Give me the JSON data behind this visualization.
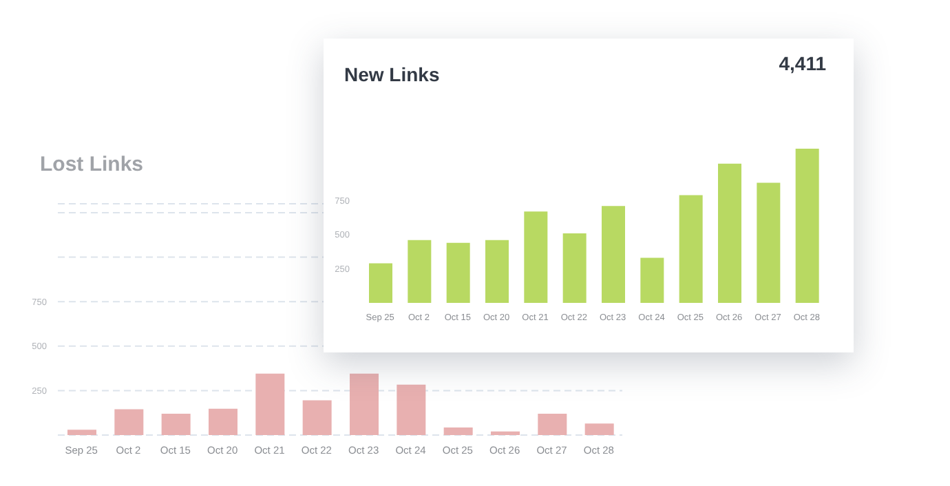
{
  "chart_data": [
    {
      "type": "bar",
      "title": "New Links",
      "annotations": [
        "4,411"
      ],
      "categories": [
        "Sep 25",
        "Oct 2",
        "Oct 15",
        "Oct 20",
        "Oct 21",
        "Oct 22",
        "Oct 23",
        "Oct 24",
        "Oct 25",
        "Oct 26",
        "Oct 27",
        "Oct 28"
      ],
      "values": [
        290,
        460,
        440,
        460,
        670,
        510,
        710,
        330,
        790,
        1020,
        880,
        1130
      ],
      "color": "#b8d962",
      "ylim": [
        0,
        1130
      ],
      "yticks": [
        250,
        500,
        750
      ],
      "grid": false
    },
    {
      "type": "bar",
      "title": "Lost Links",
      "categories": [
        "Sep 25",
        "Oct 2",
        "Oct 15",
        "Oct 20",
        "Oct 21",
        "Oct 22",
        "Oct 23",
        "Oct 24",
        "Oct 25",
        "Oct 26",
        "Oct 27",
        "Oct 28"
      ],
      "values": [
        30,
        145,
        120,
        148,
        345,
        195,
        345,
        283,
        43,
        20,
        120,
        65
      ],
      "color": "#e8b0b0",
      "ylim": [
        0,
        1300
      ],
      "yticks": [
        250,
        500,
        750,
        {
          "value": 1000,
          "label": null
        },
        {
          "value": 1250,
          "label": null
        }
      ],
      "grid": "y"
    }
  ]
}
